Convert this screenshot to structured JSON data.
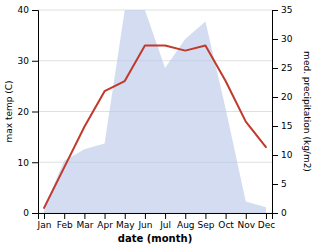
{
  "chart_data": {
    "type": "line",
    "categories": [
      "Jan",
      "Feb",
      "Mar",
      "Apr",
      "May",
      "Jun",
      "Jul",
      "Aug",
      "Sep",
      "Oct",
      "Nov",
      "Dec"
    ],
    "series": [
      {
        "type": "area",
        "color": "#b8c4e8",
        "axis": "y2",
        "values": [
          1,
          9,
          11,
          12,
          35,
          35,
          25,
          30,
          33,
          18,
          2,
          1
        ]
      },
      {
        "type": "line",
        "color": "#c0392b",
        "values": [
          1,
          9,
          17,
          24,
          26,
          33,
          33,
          32,
          33,
          26,
          18,
          13
        ]
      }
    ],
    "xlabel": "date (month)",
    "ylabel": "max temp (C)",
    "y2label": "med. precipitation (kg/m2)",
    "ylim": [
      0,
      40
    ],
    "yticks": [
      0,
      10,
      20,
      30,
      40
    ],
    "y2lim": [
      0,
      35
    ],
    "y2ticks": [
      0,
      5,
      10,
      15,
      20,
      25,
      30,
      35
    ],
    "grid": true
  }
}
